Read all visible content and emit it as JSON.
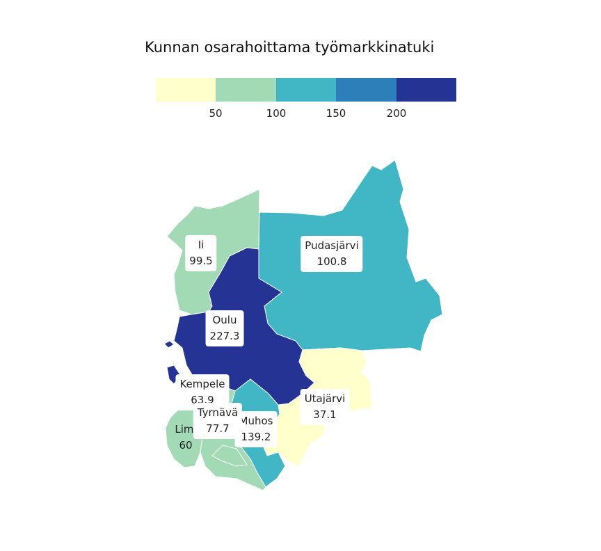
{
  "title": "Kunnan osarahoittama työmarkkinatuki",
  "legend": {
    "colors": [
      "#ffffcc",
      "#a1dab4",
      "#41b6c4",
      "#2c7fb8",
      "#253494"
    ],
    "ticks": [
      "50",
      "100",
      "150",
      "200"
    ]
  },
  "municipalities": [
    {
      "name": "Ii",
      "value": "99.5",
      "color": "#a1dab4"
    },
    {
      "name": "Pudasjärvi",
      "value": "100.8",
      "color": "#41b6c4"
    },
    {
      "name": "Oulu",
      "value": "227.3",
      "color": "#253494"
    },
    {
      "name": "Kempele",
      "value": "63.9",
      "color": "#a1dab4"
    },
    {
      "name": "Utajärvi",
      "value": "37.1",
      "color": "#ffffcc"
    },
    {
      "name": "Tyrnävä",
      "value": "77.7",
      "color": "#a1dab4"
    },
    {
      "name": "Muhos",
      "value": "139.2",
      "color": "#41b6c4"
    },
    {
      "name": "Limi",
      "value": "60",
      "color": "#a1dab4"
    }
  ]
}
